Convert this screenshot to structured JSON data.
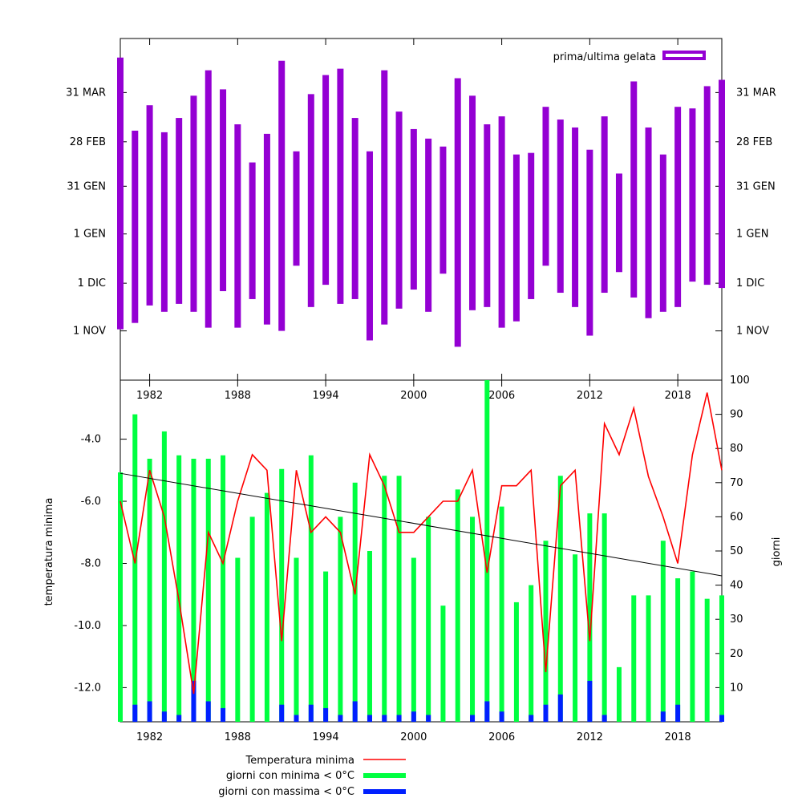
{
  "chart_data": [
    {
      "type": "bar",
      "title": "",
      "legend": {
        "label": "prima/ultima gelata",
        "position": "top-right",
        "color": "#9400d3"
      },
      "y_ticks": [
        "1 NOV",
        "1 DIC",
        "1 GEN",
        "31 GEN",
        "28 FEB",
        "31 MAR"
      ],
      "y_tick_days": [
        0,
        30,
        61,
        91,
        119,
        150
      ],
      "ylim_days": [
        -31,
        184
      ],
      "x_ticks": [
        1982,
        1988,
        1994,
        2000,
        2006,
        2012,
        2018
      ],
      "xlim": [
        1980,
        2021
      ],
      "series": [
        {
          "name": "prima/ultima gelata",
          "years": [
            1980,
            1981,
            1982,
            1983,
            1984,
            1985,
            1986,
            1987,
            1988,
            1989,
            1990,
            1991,
            1992,
            1993,
            1994,
            1995,
            1996,
            1997,
            1998,
            1999,
            2000,
            2001,
            2002,
            2003,
            2004,
            2005,
            2006,
            2007,
            2008,
            2009,
            2010,
            2011,
            2012,
            2013,
            2014,
            2015,
            2016,
            2017,
            2018,
            2019,
            2020,
            2021
          ],
          "first_frost_day": [
            1,
            5,
            16,
            12,
            17,
            12,
            2,
            25,
            2,
            20,
            4,
            0,
            41,
            15,
            29,
            17,
            20,
            -6,
            4,
            14,
            26,
            12,
            36,
            -10,
            13,
            15,
            2,
            6,
            20,
            41,
            24,
            15,
            -3,
            24,
            37,
            21,
            8,
            12,
            15,
            31,
            29,
            27
          ],
          "last_frost_day": [
            172,
            126,
            142,
            125,
            134,
            148,
            164,
            152,
            130,
            106,
            124,
            170,
            113,
            149,
            161,
            165,
            134,
            113,
            164,
            138,
            127,
            121,
            116,
            159,
            148,
            130,
            135,
            111,
            112,
            141,
            133,
            128,
            114,
            135,
            99,
            157,
            128,
            111,
            141,
            140,
            154,
            158
          ]
        }
      ]
    },
    {
      "type": "line",
      "title": "",
      "xlabel": "",
      "ylabel": "temperatura minima",
      "y2label": "giorni",
      "x_ticks": [
        1982,
        1988,
        1994,
        2000,
        2006,
        2012,
        2018
      ],
      "xlim": [
        1980,
        2021
      ],
      "y_ticks": [
        "-4.0",
        "-6.0",
        "-8.0",
        "-10.0",
        "-12.0"
      ],
      "ylim": [
        -13.1,
        -2.1
      ],
      "y2_ticks": [
        "10",
        "20",
        "30",
        "40",
        "50",
        "60",
        "70",
        "80",
        "90",
        "100"
      ],
      "y2lim": [
        0,
        100
      ],
      "legend_position": "bottom",
      "trend": {
        "start": -5.1,
        "end": -8.4,
        "color": "#000000"
      },
      "series": [
        {
          "name": "Temperatura minima",
          "color": "#ff0000",
          "x": [
            1980,
            1981,
            1982,
            1983,
            1984,
            1985,
            1986,
            1987,
            1988,
            1989,
            1990,
            1991,
            1992,
            1993,
            1994,
            1995,
            1996,
            1997,
            1998,
            1999,
            2000,
            2001,
            2002,
            2003,
            2004,
            2005,
            2006,
            2007,
            2008,
            2009,
            2010,
            2011,
            2012,
            2013,
            2014,
            2015,
            2016,
            2017,
            2018,
            2019,
            2020,
            2021
          ],
          "values": [
            -6,
            -8,
            -5,
            -6.5,
            -9.2,
            -12.2,
            -7,
            -8,
            -6,
            -4.5,
            -5,
            -10.5,
            -5,
            -7,
            -6.5,
            -7,
            -9,
            -4.5,
            -5.5,
            -7,
            -7,
            -6.5,
            -6,
            -6,
            -5,
            -8.3,
            -5.5,
            -5.5,
            -5,
            -11.5,
            -5.5,
            -5,
            -10.5,
            -3.5,
            -4.5,
            -3,
            -5.2,
            -6.5,
            -8,
            -4.5,
            -2.5,
            -5
          ]
        },
        {
          "name": "giorni con minima < 0°C",
          "color": "#00ff40",
          "x": [
            1980,
            1981,
            1982,
            1983,
            1984,
            1985,
            1986,
            1987,
            1988,
            1989,
            1990,
            1991,
            1992,
            1993,
            1994,
            1995,
            1996,
            1997,
            1998,
            1999,
            2000,
            2001,
            2002,
            2003,
            2004,
            2005,
            2006,
            2007,
            2008,
            2009,
            2010,
            2011,
            2012,
            2013,
            2014,
            2015,
            2016,
            2017,
            2018,
            2019,
            2020,
            2021
          ],
          "values": [
            73,
            90,
            77,
            85,
            78,
            77,
            77,
            78,
            48,
            60,
            67,
            74,
            48,
            78,
            44,
            60,
            70,
            50,
            72,
            72,
            48,
            60,
            34,
            68,
            60,
            100,
            63,
            35,
            40,
            53,
            72,
            49,
            61,
            61,
            16,
            37,
            37,
            53,
            42,
            44,
            36,
            37
          ]
        },
        {
          "name": "giorni con massima < 0°C",
          "color": "#0020ff",
          "x": [
            1980,
            1981,
            1982,
            1983,
            1984,
            1985,
            1986,
            1987,
            1988,
            1989,
            1990,
            1991,
            1992,
            1993,
            1994,
            1995,
            1996,
            1997,
            1998,
            1999,
            2000,
            2001,
            2002,
            2003,
            2004,
            2005,
            2006,
            2007,
            2008,
            2009,
            2010,
            2011,
            2012,
            2013,
            2014,
            2015,
            2016,
            2017,
            2018,
            2019,
            2020,
            2021
          ],
          "values": [
            0,
            5,
            6,
            3,
            2,
            12,
            6,
            4,
            0,
            0,
            0,
            5,
            2,
            5,
            4,
            2,
            6,
            2,
            2,
            2,
            3,
            2,
            0,
            0,
            2,
            6,
            3,
            0,
            2,
            5,
            8,
            0,
            12,
            2,
            0,
            0,
            0,
            3,
            5,
            0,
            0,
            2
          ]
        }
      ]
    }
  ]
}
